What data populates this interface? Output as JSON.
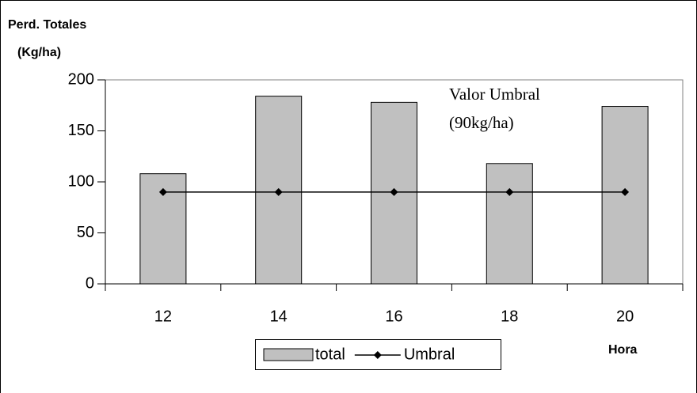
{
  "chart_data": {
    "type": "bar",
    "y_label": [
      "Perd. Totales",
      "(Kg/ha)"
    ],
    "x_label": "Hora",
    "annotation": [
      "Valor Umbral",
      "(90kg/ha)"
    ],
    "categories": [
      "12",
      "14",
      "16",
      "18",
      "20"
    ],
    "series": [
      {
        "name": "total",
        "type": "bar",
        "color": "#c0c0c0",
        "values": [
          108,
          184,
          178,
          118,
          174
        ]
      },
      {
        "name": "Umbral",
        "type": "line",
        "color": "#000000",
        "values": [
          90,
          90,
          90,
          90,
          90
        ]
      }
    ],
    "ylim": [
      0,
      200
    ],
    "yticks": [
      0,
      50,
      100,
      150,
      200
    ],
    "legend": "bottom"
  }
}
